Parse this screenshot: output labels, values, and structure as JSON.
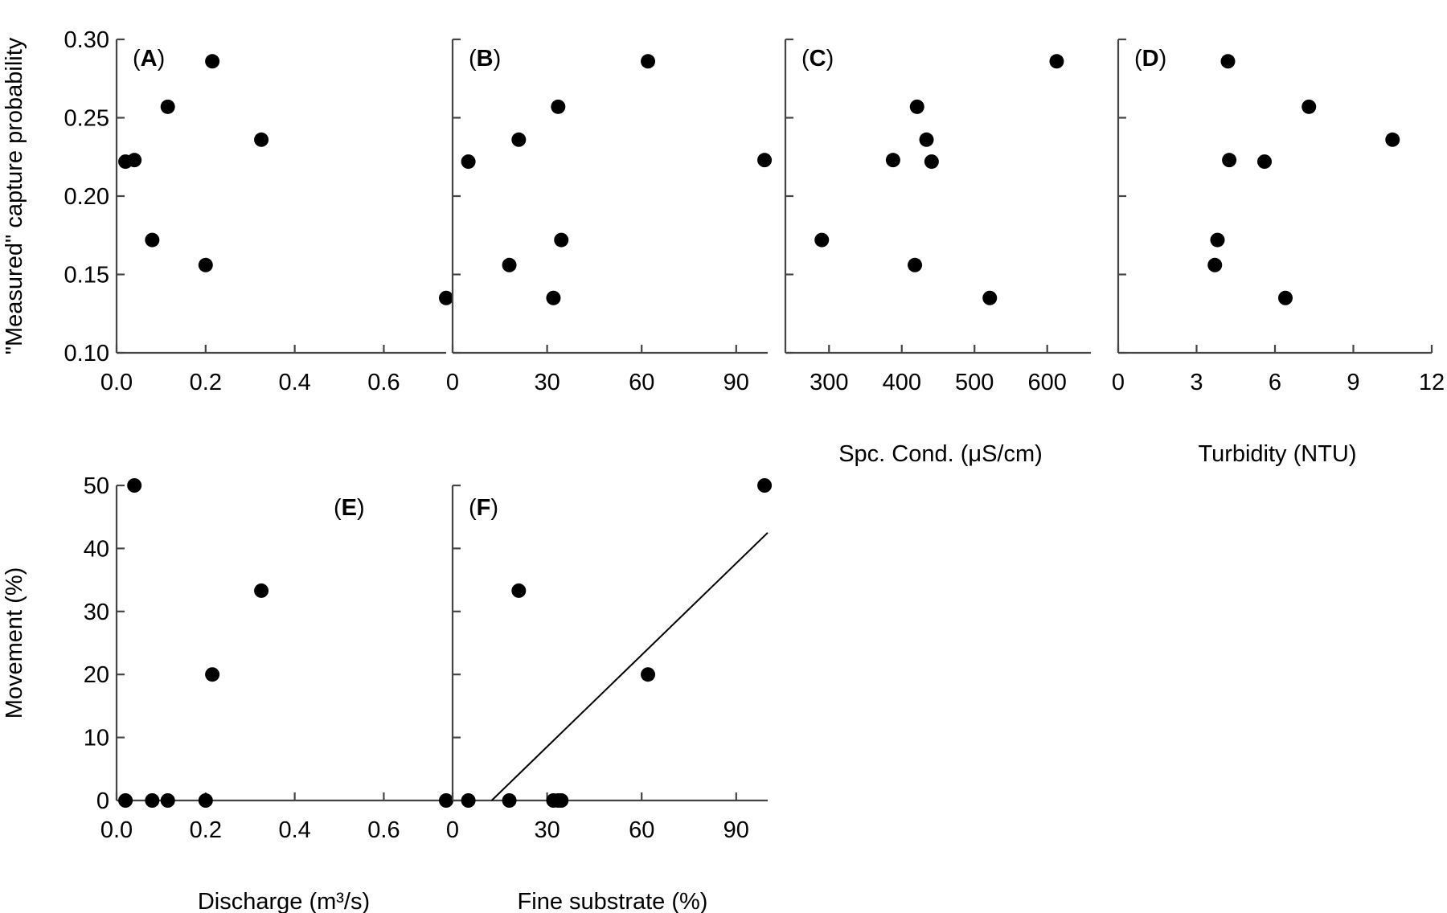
{
  "chart_data": [
    {
      "id": "A",
      "type": "scatter",
      "label_open": "(",
      "label_letter": "A",
      "label_close": ")",
      "xlabel": "",
      "ylabel": "\"Measured\" capture probability",
      "xlim": [
        0.0,
        0.74
      ],
      "ylim": [
        0.1,
        0.3
      ],
      "xticks": [
        "0.0",
        "0.2",
        "0.4",
        "0.6"
      ],
      "xtick_values": [
        0.0,
        0.2,
        0.4,
        0.6
      ],
      "yticks": [
        "0.10",
        "0.15",
        "0.20",
        "0.25",
        "0.30"
      ],
      "ytick_values": [
        0.1,
        0.15,
        0.2,
        0.25,
        0.3
      ],
      "points": [
        {
          "x": 0.02,
          "y": 0.222
        },
        {
          "x": 0.04,
          "y": 0.223
        },
        {
          "x": 0.08,
          "y": 0.172
        },
        {
          "x": 0.115,
          "y": 0.257
        },
        {
          "x": 0.2,
          "y": 0.156
        },
        {
          "x": 0.215,
          "y": 0.286
        },
        {
          "x": 0.325,
          "y": 0.236
        },
        {
          "x": 0.74,
          "y": 0.135
        }
      ]
    },
    {
      "id": "B",
      "type": "scatter",
      "label_open": "(",
      "label_letter": "B",
      "label_close": ")",
      "xlabel": "",
      "ylabel": "",
      "xlim": [
        0,
        100
      ],
      "ylim": [
        0.1,
        0.3
      ],
      "xticks": [
        "0",
        "30",
        "60",
        "90"
      ],
      "xtick_values": [
        0,
        30,
        60,
        90
      ],
      "yticks": [],
      "ytick_values": [
        0.1,
        0.15,
        0.2,
        0.25,
        0.3
      ],
      "points": [
        {
          "x": 5,
          "y": 0.222
        },
        {
          "x": 18,
          "y": 0.156
        },
        {
          "x": 21,
          "y": 0.236
        },
        {
          "x": 32,
          "y": 0.135
        },
        {
          "x": 33.5,
          "y": 0.257
        },
        {
          "x": 34.5,
          "y": 0.172
        },
        {
          "x": 62,
          "y": 0.286
        },
        {
          "x": 99,
          "y": 0.223
        }
      ]
    },
    {
      "id": "C",
      "type": "scatter",
      "label_open": "(",
      "label_letter": "C",
      "label_close": ")",
      "xlabel": "Spc. Cond. (μS/cm)",
      "ylabel": "",
      "xlim": [
        240,
        660
      ],
      "ylim": [
        0.1,
        0.3
      ],
      "xticks": [
        "300",
        "400",
        "500",
        "600"
      ],
      "xtick_values": [
        300,
        400,
        500,
        600
      ],
      "yticks": [],
      "ytick_values": [
        0.1,
        0.15,
        0.2,
        0.25,
        0.3
      ],
      "points": [
        {
          "x": 290,
          "y": 0.172
        },
        {
          "x": 388,
          "y": 0.223
        },
        {
          "x": 418,
          "y": 0.156
        },
        {
          "x": 421,
          "y": 0.257
        },
        {
          "x": 434,
          "y": 0.236
        },
        {
          "x": 441,
          "y": 0.222
        },
        {
          "x": 521,
          "y": 0.135
        },
        {
          "x": 613,
          "y": 0.286
        }
      ]
    },
    {
      "id": "D",
      "type": "scatter",
      "label_open": "(",
      "label_letter": "D",
      "label_close": ")",
      "xlabel": "Turbidity (NTU)",
      "ylabel": "",
      "xlim": [
        0,
        12
      ],
      "ylim": [
        0.1,
        0.3
      ],
      "xticks": [
        "0",
        "3",
        "6",
        "9",
        "12"
      ],
      "xtick_values": [
        0,
        3,
        6,
        9,
        12
      ],
      "yticks": [],
      "ytick_values": [
        0.1,
        0.15,
        0.2,
        0.25,
        0.3
      ],
      "points": [
        {
          "x": 3.7,
          "y": 0.156
        },
        {
          "x": 3.8,
          "y": 0.172
        },
        {
          "x": 4.2,
          "y": 0.286
        },
        {
          "x": 4.25,
          "y": 0.223
        },
        {
          "x": 5.6,
          "y": 0.222
        },
        {
          "x": 6.4,
          "y": 0.135
        },
        {
          "x": 7.3,
          "y": 0.257
        },
        {
          "x": 10.5,
          "y": 0.236
        }
      ]
    },
    {
      "id": "E",
      "type": "scatter",
      "label_open": "(",
      "label_letter": "E",
      "label_close": ")",
      "xlabel": "Discharge (m³/s)",
      "ylabel": "Movement (%)",
      "xlim": [
        0.0,
        0.74
      ],
      "ylim": [
        0,
        50
      ],
      "xticks": [
        "0.0",
        "0.2",
        "0.4",
        "0.6"
      ],
      "xtick_values": [
        0.0,
        0.2,
        0.4,
        0.6
      ],
      "yticks": [
        "0",
        "10",
        "20",
        "30",
        "40",
        "50"
      ],
      "ytick_values": [
        0,
        10,
        20,
        30,
        40,
        50
      ],
      "points": [
        {
          "x": 0.02,
          "y": 0
        },
        {
          "x": 0.04,
          "y": 50
        },
        {
          "x": 0.08,
          "y": 0
        },
        {
          "x": 0.115,
          "y": 0
        },
        {
          "x": 0.2,
          "y": 0
        },
        {
          "x": 0.215,
          "y": 20
        },
        {
          "x": 0.325,
          "y": 33.3
        },
        {
          "x": 0.74,
          "y": 0
        }
      ]
    },
    {
      "id": "F",
      "type": "scatter",
      "label_open": "(",
      "label_letter": "F",
      "label_close": ")",
      "xlabel": "Fine substrate (%)",
      "ylabel": "",
      "xlim": [
        0,
        100
      ],
      "ylim": [
        0,
        50
      ],
      "xticks": [
        "0",
        "30",
        "60",
        "90"
      ],
      "xtick_values": [
        0,
        30,
        60,
        90
      ],
      "yticks": [],
      "ytick_values": [
        0,
        10,
        20,
        30,
        40,
        50
      ],
      "points": [
        {
          "x": 5,
          "y": 0
        },
        {
          "x": 18,
          "y": 0
        },
        {
          "x": 21,
          "y": 33.3
        },
        {
          "x": 32,
          "y": 0
        },
        {
          "x": 33.5,
          "y": 0
        },
        {
          "x": 34.5,
          "y": 0
        },
        {
          "x": 62,
          "y": 20
        },
        {
          "x": 99,
          "y": 50
        }
      ],
      "fit_line": {
        "x1": 12.4,
        "y1": 0,
        "x2": 100,
        "y2": 42.5
      }
    }
  ]
}
